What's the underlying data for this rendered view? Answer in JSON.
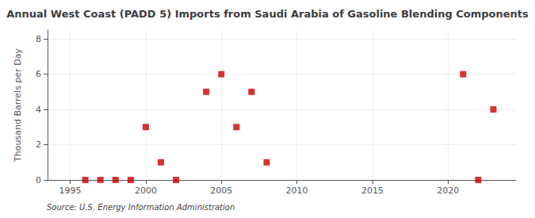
{
  "chart_data": {
    "type": "scatter",
    "title": "Annual West Coast (PADD 5) Imports from Saudi Arabia of Gasoline Blending Components",
    "ylabel": "Thousand Barrels per Day",
    "annotations": [
      "Source: U.S. Energy Information Administration"
    ],
    "x": [
      1996,
      1997,
      1998,
      1999,
      2000,
      2001,
      2002,
      2004,
      2005,
      2006,
      2007,
      2008,
      2021,
      2022,
      2023
    ],
    "values": [
      0,
      0,
      0,
      0,
      3,
      1,
      0,
      5,
      6,
      3,
      5,
      1,
      6,
      0,
      4
    ],
    "color": "#cc0000",
    "marker": "square",
    "xlim": [
      1993.5,
      2024.5
    ],
    "xticks": [
      1995,
      2000,
      2005,
      2010,
      2015,
      2020
    ],
    "ylim": [
      0,
      8.5
    ],
    "yticks": [
      0,
      2,
      4,
      6,
      8
    ],
    "grid": true
  }
}
